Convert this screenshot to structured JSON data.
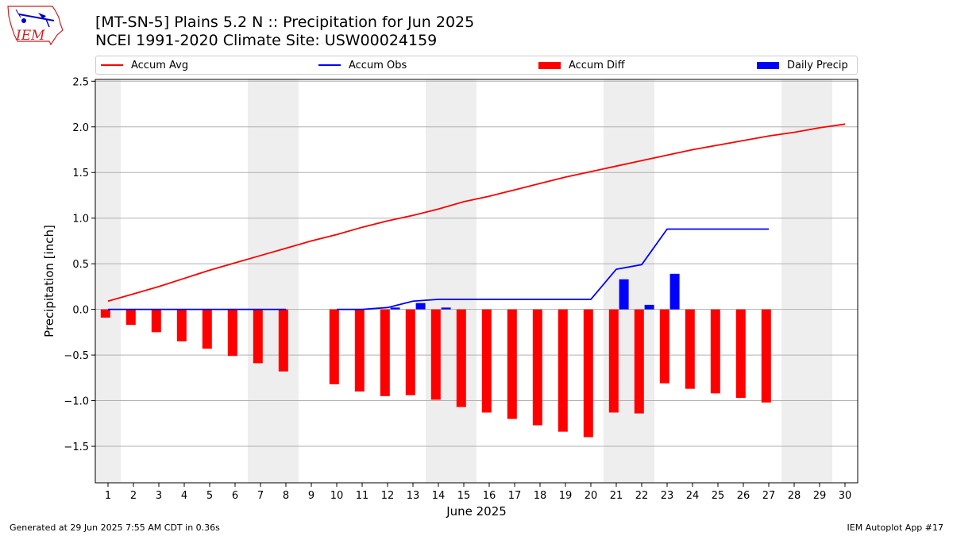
{
  "header": {
    "title_line1": "[MT-SN-5] Plains 5.2 N :: Precipitation for Jun 2025",
    "title_line2": "NCEI 1991-2020 Climate Site: USW00024159"
  },
  "logo": {
    "text": "IEM",
    "color": "#cc2222"
  },
  "footer": {
    "left": "Generated at 29 Jun 2025 7:55 AM CDT in 0.36s",
    "right": "IEM Autoplot App #17"
  },
  "chart_data": {
    "type": "bar",
    "xlabel": "June 2025",
    "ylabel": "Precipitation [inch]",
    "xlim": [
      0.5,
      30.5
    ],
    "ylim": [
      -1.9,
      2.52
    ],
    "yticks": [
      -1.5,
      -1.0,
      -0.5,
      0.0,
      0.5,
      1.0,
      1.5,
      2.0,
      2.5
    ],
    "ytick_labels": [
      "−1.5",
      "−1.0",
      "−0.5",
      "0.0",
      "0.5",
      "1.0",
      "1.5",
      "2.0",
      "2.5"
    ],
    "grid": "horizontal",
    "legend_position": "top",
    "weekend_shading": [
      [
        0.5,
        1.5
      ],
      [
        6.5,
        8.5
      ],
      [
        13.5,
        15.5
      ],
      [
        20.5,
        22.5
      ],
      [
        27.5,
        29.5
      ]
    ],
    "categories": [
      "1",
      "2",
      "3",
      "4",
      "5",
      "6",
      "7",
      "8",
      "9",
      "10",
      "11",
      "12",
      "13",
      "14",
      "15",
      "16",
      "17",
      "18",
      "19",
      "20",
      "21",
      "22",
      "23",
      "24",
      "25",
      "26",
      "27",
      "28",
      "29",
      "30"
    ],
    "series": [
      {
        "name": "Accum Avg",
        "kind": "line",
        "color": "#ff0000",
        "x": [
          1,
          2,
          3,
          4,
          5,
          6,
          7,
          8,
          9,
          10,
          11,
          12,
          13,
          14,
          15,
          16,
          17,
          18,
          19,
          20,
          21,
          22,
          23,
          24,
          25,
          26,
          27,
          28,
          29,
          30
        ],
        "values": [
          0.09,
          0.17,
          0.25,
          0.34,
          0.43,
          0.51,
          0.59,
          0.67,
          0.75,
          0.82,
          0.9,
          0.97,
          1.03,
          1.1,
          1.18,
          1.24,
          1.31,
          1.38,
          1.45,
          1.51,
          1.57,
          1.63,
          1.69,
          1.75,
          1.8,
          1.85,
          1.9,
          1.94,
          1.99,
          2.03
        ]
      },
      {
        "name": "Accum Obs",
        "kind": "line",
        "color": "#0000ff",
        "x": [
          1,
          2,
          3,
          4,
          5,
          6,
          7,
          8,
          9,
          10,
          11,
          12,
          13,
          14,
          15,
          16,
          17,
          18,
          19,
          20,
          21,
          22,
          23,
          24,
          25,
          26,
          27,
          28,
          29,
          30
        ],
        "values": [
          0.0,
          0.0,
          0.0,
          0.0,
          0.0,
          0.0,
          0.0,
          0.0,
          null,
          0.0,
          0.0,
          0.02,
          0.09,
          0.11,
          0.11,
          0.11,
          0.11,
          0.11,
          0.11,
          0.11,
          0.44,
          0.49,
          0.88,
          0.88,
          0.88,
          0.88,
          0.88,
          null,
          null,
          null
        ]
      },
      {
        "name": "Accum Diff",
        "kind": "bar",
        "color": "#ff0000",
        "x": [
          1,
          2,
          3,
          4,
          5,
          6,
          7,
          8,
          10,
          11,
          12,
          13,
          14,
          15,
          16,
          17,
          18,
          19,
          20,
          21,
          22,
          23,
          24,
          25,
          26,
          27
        ],
        "values": [
          -0.09,
          -0.17,
          -0.25,
          -0.35,
          -0.43,
          -0.51,
          -0.59,
          -0.68,
          -0.82,
          -0.9,
          -0.95,
          -0.94,
          -0.99,
          -1.07,
          -1.13,
          -1.2,
          -1.27,
          -1.34,
          -1.4,
          -1.13,
          -1.14,
          -0.81,
          -0.87,
          -0.92,
          -0.97,
          -1.02
        ]
      },
      {
        "name": "Daily Precip",
        "kind": "bar",
        "color": "#0000ff",
        "x": [
          12,
          13,
          14,
          21,
          22,
          23
        ],
        "values": [
          0.02,
          0.07,
          0.02,
          0.33,
          0.05,
          0.39
        ]
      }
    ]
  }
}
